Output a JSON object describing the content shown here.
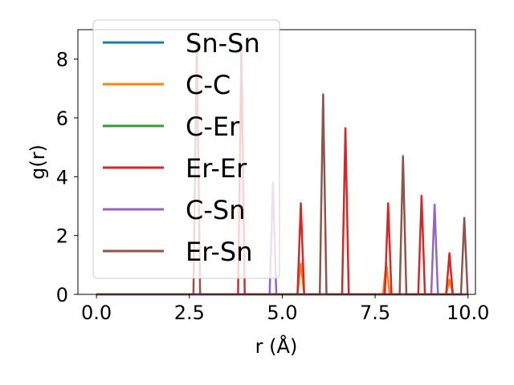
{
  "chart_data": {
    "type": "line",
    "xlabel": "r (Å)",
    "ylabel": "g(r)",
    "xlim": [
      -0.5,
      10.2
    ],
    "ylim": [
      0,
      9
    ],
    "xticks": [
      0.0,
      2.5,
      5.0,
      7.5,
      10.0
    ],
    "xtick_labels": [
      "0.0",
      "2.5",
      "5.0",
      "7.5",
      "10.0"
    ],
    "yticks": [
      0,
      2,
      4,
      6,
      8
    ],
    "ytick_labels": [
      "0",
      "2",
      "4",
      "6",
      "8"
    ],
    "grid": false,
    "legend_position": "upper-left",
    "peak_half_width": 0.09,
    "series": [
      {
        "name": "Sn-Sn",
        "color": "#1f77b4",
        "peaks": []
      },
      {
        "name": "C-C",
        "color": "#ff7f0e",
        "peaks": [
          {
            "x": 5.5,
            "y": 1.05
          },
          {
            "x": 7.8,
            "y": 1.05
          },
          {
            "x": 9.5,
            "y": 0.5
          }
        ]
      },
      {
        "name": "C-Er",
        "color": "#2ca02c",
        "peaks": []
      },
      {
        "name": "Er-Er",
        "color": "#d62728",
        "peaks": [
          {
            "x": 3.9,
            "y": 8.3
          },
          {
            "x": 5.5,
            "y": 3.1
          },
          {
            "x": 6.7,
            "y": 5.65
          },
          {
            "x": 7.85,
            "y": 3.1
          },
          {
            "x": 8.75,
            "y": 3.35
          },
          {
            "x": 9.5,
            "y": 1.4
          }
        ]
      },
      {
        "name": "C-Sn",
        "color": "#9467bd",
        "peaks": [
          {
            "x": 4.75,
            "y": 3.8
          },
          {
            "x": 9.1,
            "y": 3.05
          }
        ]
      },
      {
        "name": "Er-Sn",
        "color": "#8c564b",
        "peaks": [
          {
            "x": 2.7,
            "y": 8.6
          },
          {
            "x": 6.1,
            "y": 6.8
          },
          {
            "x": 8.25,
            "y": 4.7
          },
          {
            "x": 9.9,
            "y": 2.6
          }
        ]
      }
    ]
  }
}
